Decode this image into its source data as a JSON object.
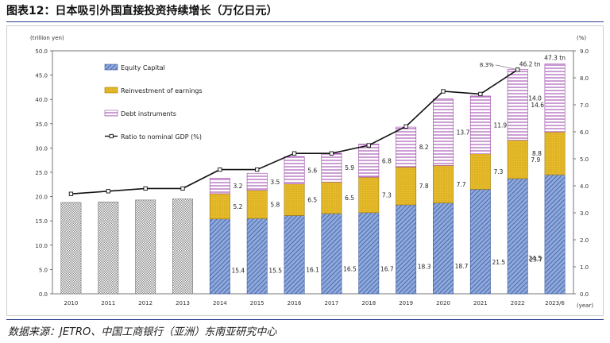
{
  "title": "图表12：日本吸引外国直接投资持续增长（万亿日元）",
  "source": "数据来源：JETRO、中国工商银行（亚洲）东南亚研究中心",
  "chart_data": {
    "type": "bar",
    "stacked": true,
    "categories": [
      "2010",
      "2011",
      "2012",
      "2013",
      "2014",
      "2015",
      "2016",
      "2017",
      "2018",
      "2019",
      "2020",
      "2021",
      "2022",
      "2023/6"
    ],
    "left_axis": {
      "label": "(trillion yen)",
      "min": 0,
      "max": 50,
      "step": 5
    },
    "right_axis": {
      "label": "(%)",
      "min": 0,
      "max": 9,
      "step": 1
    },
    "x_unit": "(year)",
    "total_only": [
      18.8,
      18.9,
      19.3,
      19.5
    ],
    "series": [
      {
        "name": "Equity Capital",
        "values": [
          null,
          null,
          null,
          null,
          15.4,
          15.5,
          16.1,
          16.5,
          16.7,
          18.3,
          18.7,
          21.5,
          23.7,
          24.5
        ],
        "color": "#4a6fb5"
      },
      {
        "name": "Reinvestment of earnings",
        "values": [
          null,
          null,
          null,
          null,
          5.2,
          5.8,
          6.5,
          6.5,
          7.3,
          7.8,
          7.7,
          7.3,
          7.9,
          8.8
        ],
        "color": "#e0b020"
      },
      {
        "name": "Debt instruments",
        "values": [
          null,
          null,
          null,
          null,
          3.2,
          3.5,
          5.6,
          5.9,
          6.8,
          8.2,
          13.7,
          11.9,
          14.6,
          14.0
        ],
        "color": "#9a3fa8"
      }
    ],
    "line": {
      "name": "Ratio to nominal GDP (%)",
      "values": [
        3.7,
        3.8,
        3.9,
        3.9,
        4.6,
        4.6,
        5.2,
        5.2,
        5.5,
        6.2,
        7.5,
        7.4,
        8.3,
        null
      ]
    },
    "annotations": {
      "total_2022": "46.2 tn",
      "total_2023": "47.3 tn",
      "ratio_2022": "8.3%"
    }
  }
}
